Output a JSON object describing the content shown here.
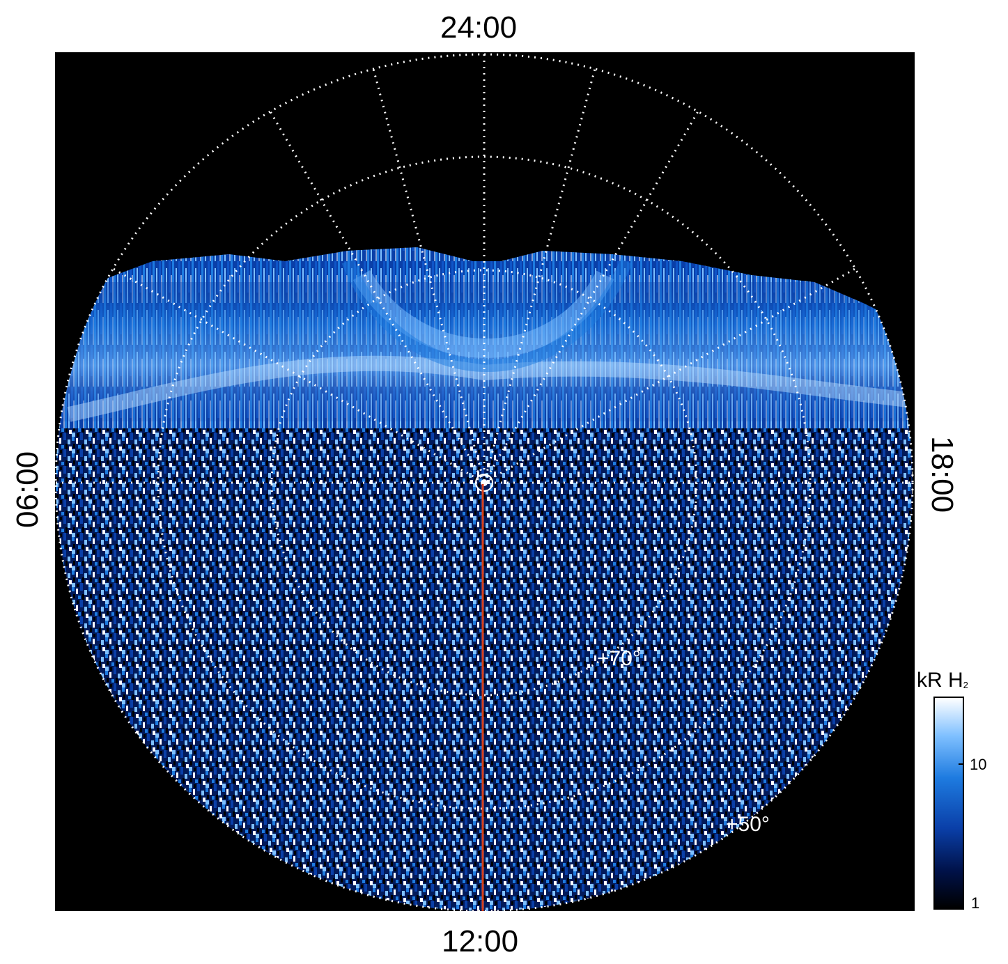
{
  "local_time_labels": {
    "top": "24:00",
    "bottom": "12:00",
    "left": "06:00",
    "right": "18:00"
  },
  "latitude_labels": {
    "inner": "+70°",
    "outer": "+50°"
  },
  "colorbar": {
    "title_main": "kR H",
    "title_sub": "2",
    "ticks": [
      "10",
      "1"
    ],
    "scale": "log",
    "colors": [
      "#000000",
      "#00124a",
      "#0a3fa8",
      "#1e7be0",
      "#7fc0ff",
      "#ffffff"
    ]
  },
  "overlay": {
    "grid_color": "#ffffff",
    "meridian_line_color": "#d8401a"
  }
}
